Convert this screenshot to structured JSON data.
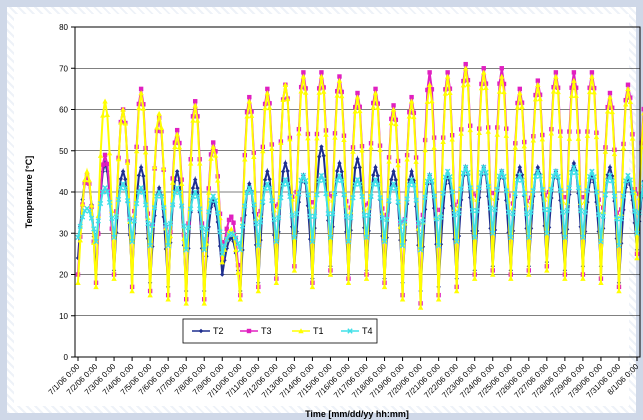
{
  "chart_data": {
    "type": "line",
    "title": "",
    "xlabel": "Time [mm/dd/yy hh:mm]",
    "ylabel": "Temperature [°C]",
    "ylim": [
      0,
      80
    ],
    "yticks": [
      "0",
      "10",
      "20",
      "30",
      "40",
      "50",
      "60",
      "70",
      "80"
    ],
    "grid": "horizontal",
    "legend_placement": "bottom-left",
    "categories": [
      "7/1/06 0:00",
      "7/2/06 0:00",
      "7/3/06 0:00",
      "7/4/06 0:00",
      "7/5/06 0:00",
      "7/6/06 0:00",
      "7/7/06 0:00",
      "7/8/06 0:00",
      "7/9/06 0:00",
      "7/10/06 0:00",
      "7/11/06 0:00",
      "7/12/06 0:00",
      "7/13/06 0:00",
      "7/14/06 0:00",
      "7/15/06 0:00",
      "7/16/06 0:00",
      "7/17/06 0:00",
      "7/18/06 0:00",
      "7/19/06 0:00",
      "7/20/06 0:00",
      "7/21/06 0:00",
      "7/22/06 0:00",
      "7/23/06 0:00",
      "7/24/06 0:00",
      "7/25/06 0:00",
      "7/26/06 0:00",
      "7/27/06 0:00",
      "7/28/06 0:00",
      "7/29/06 0:00",
      "7/30/06 0:00",
      "7/31/06 0:00",
      "8/1/06 0:00"
    ],
    "series": [
      {
        "name": "T2",
        "color": "#1f2f8f",
        "marker": "diamond",
        "daily_max": [
          44,
          47,
          45,
          46,
          41,
          45,
          43,
          38,
          29,
          42,
          45,
          47,
          44,
          51,
          47,
          48,
          46,
          45,
          45,
          44,
          44,
          46,
          46,
          45,
          46,
          46,
          45,
          47,
          44,
          46,
          43,
          44
        ],
        "daily_min": [
          24,
          20,
          21,
          20,
          18,
          17,
          16,
          16,
          20,
          16,
          18,
          20,
          22,
          19,
          22,
          20,
          21,
          19,
          18,
          16,
          17,
          19,
          21,
          22,
          21,
          22,
          23,
          21,
          22,
          22,
          18,
          26
        ]
      },
      {
        "name": "T3",
        "color": "#e020c0",
        "marker": "square",
        "daily_max": [
          44,
          49,
          60,
          65,
          58,
          55,
          62,
          52,
          34,
          63,
          65,
          66,
          69,
          69,
          68,
          64,
          65,
          61,
          63,
          69,
          69,
          71,
          70,
          70,
          65,
          67,
          69,
          69,
          69,
          64,
          66,
          63
        ],
        "daily_min": [
          20,
          18,
          20,
          17,
          16,
          15,
          14,
          14,
          24,
          15,
          17,
          19,
          22,
          18,
          21,
          19,
          20,
          18,
          15,
          13,
          15,
          17,
          20,
          21,
          20,
          21,
          22,
          20,
          20,
          19,
          17,
          25
        ]
      },
      {
        "name": "T1",
        "color": "#ffff00",
        "marker": "triangle",
        "daily_max": [
          45,
          62,
          60,
          64,
          59,
          54,
          61,
          51,
          31,
          62,
          64,
          66,
          68,
          68,
          67,
          63,
          64,
          60,
          62,
          66,
          68,
          70,
          69,
          68,
          64,
          66,
          68,
          67,
          68,
          63,
          65,
          62
        ],
        "daily_min": [
          18,
          17,
          19,
          16,
          15,
          14,
          13,
          13,
          23,
          14,
          16,
          18,
          21,
          17,
          20,
          18,
          19,
          17,
          14,
          12,
          14,
          16,
          19,
          20,
          19,
          20,
          21,
          19,
          19,
          18,
          16,
          24
        ]
      },
      {
        "name": "T4",
        "color": "#40e0e8",
        "marker": "x",
        "daily_max": [
          36,
          41,
          42,
          41,
          40,
          41,
          40,
          39,
          30,
          41,
          42,
          43,
          44,
          44,
          44,
          43,
          43,
          42,
          43,
          44,
          45,
          46,
          46,
          45,
          44,
          45,
          45,
          46,
          45,
          44,
          44,
          43
        ],
        "daily_min": [
          29,
          28,
          29,
          28,
          27,
          27,
          26,
          26,
          25,
          26,
          27,
          28,
          29,
          28,
          29,
          28,
          29,
          28,
          27,
          26,
          27,
          28,
          29,
          30,
          29,
          29,
          30,
          29,
          29,
          28,
          27,
          30
        ]
      }
    ]
  }
}
